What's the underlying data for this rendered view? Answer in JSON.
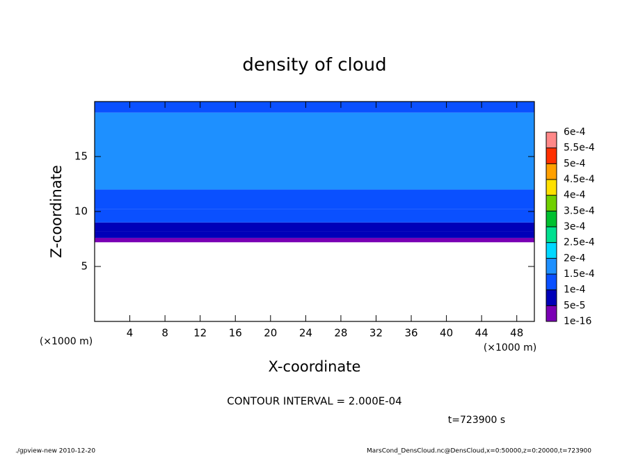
{
  "chart_data": {
    "type": "contour",
    "title": "density of cloud",
    "x_label": "X-coordinate",
    "y_label": "Z-coordinate",
    "x_unit": "(×1000 m)",
    "y_unit": "(×1000 m)",
    "xlim": [
      0,
      50
    ],
    "xticks": [
      4,
      8,
      12,
      16,
      20,
      24,
      28,
      32,
      36,
      40,
      44,
      48
    ],
    "ylim": [
      0,
      20
    ],
    "yticks": [
      5,
      10,
      15
    ],
    "profile": {
      "z": [
        7.2,
        7.6,
        8.2,
        9.0,
        10.2,
        12.0,
        17.5,
        19.0
      ],
      "values": [
        3e-05,
        6e-05,
        9e-05,
        0.00012,
        0.00014,
        0.00017,
        0.00016,
        0.00014
      ]
    },
    "colorbar": {
      "ticks": [
        {
          "value": 1e-16,
          "label": "1e-16"
        },
        {
          "value": 5e-05,
          "label": "5e-5"
        },
        {
          "value": 0.0001,
          "label": "1e-4"
        },
        {
          "value": 0.00015,
          "label": "1.5e-4"
        },
        {
          "value": 0.0002,
          "label": "2e-4"
        },
        {
          "value": 0.00025,
          "label": "2.5e-4"
        },
        {
          "value": 0.0003,
          "label": "3e-4"
        },
        {
          "value": 0.00035,
          "label": "3.5e-4"
        },
        {
          "value": 0.0004,
          "label": "4e-4"
        },
        {
          "value": 0.00045,
          "label": "4.5e-4"
        },
        {
          "value": 0.0005,
          "label": "5e-4"
        },
        {
          "value": 0.00055,
          "label": "5.5e-4"
        },
        {
          "value": 0.0006,
          "label": "6e-4"
        }
      ],
      "colors": [
        "#7a00b4",
        "#0000b8",
        "#0a50ff",
        "#1e90ff",
        "#00d8ff",
        "#00e090",
        "#00c030",
        "#70d000",
        "#ffe000",
        "#ffa000",
        "#ff3000",
        "#ff8888"
      ]
    },
    "contour_interval": "CONTOUR INTERVAL = 2.000E-04",
    "time": "t=723900 s",
    "footer_left": "./gpview-new   2010-12-20",
    "footer_right": "MarsCond_DensCloud.nc@DensCloud,x=0:50000,z=0:20000,t=723900"
  }
}
